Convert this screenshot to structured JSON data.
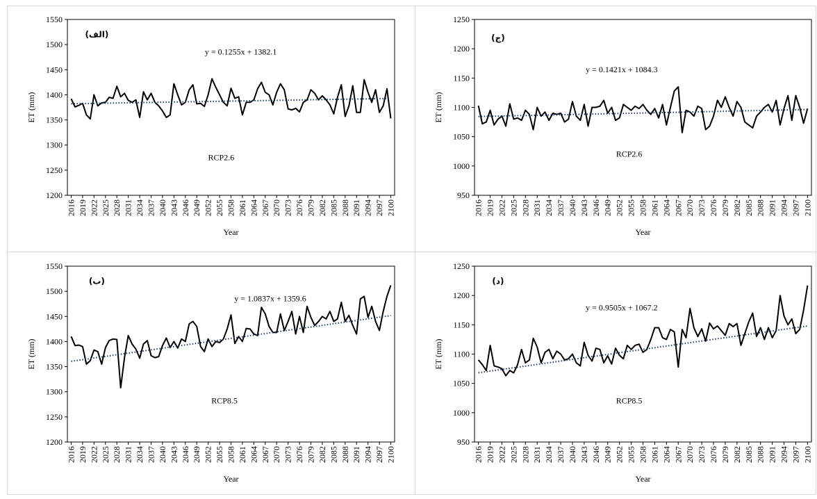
{
  "chart_data": [
    {
      "type": "line",
      "label": "(الف)",
      "annotation": "RCP2.6",
      "ylabel": "ET (mm)",
      "xlabel": "Year",
      "trendline": {
        "label": "y = 0.1255x + 1382.1",
        "slope": 0.1255,
        "intercept": 1382.1
      },
      "xlim": [
        2015,
        2101
      ],
      "ylim": [
        1200,
        1550
      ],
      "yticks": [
        1200,
        1250,
        1300,
        1350,
        1400,
        1450,
        1500,
        1550
      ],
      "xticks": [
        2016,
        2019,
        2022,
        2025,
        2028,
        2031,
        2034,
        2037,
        2040,
        2043,
        2046,
        2049,
        2052,
        2055,
        2058,
        2061,
        2064,
        2067,
        2070,
        2073,
        2076,
        2079,
        2082,
        2085,
        2088,
        2091,
        2094,
        2097,
        2100
      ],
      "x": [
        2016,
        2017,
        2018,
        2019,
        2020,
        2021,
        2022,
        2023,
        2024,
        2025,
        2026,
        2027,
        2028,
        2029,
        2030,
        2031,
        2032,
        2033,
        2034,
        2035,
        2036,
        2037,
        2038,
        2039,
        2040,
        2041,
        2042,
        2043,
        2044,
        2045,
        2046,
        2047,
        2048,
        2049,
        2050,
        2051,
        2052,
        2053,
        2054,
        2055,
        2056,
        2057,
        2058,
        2059,
        2060,
        2061,
        2062,
        2063,
        2064,
        2065,
        2066,
        2067,
        2068,
        2069,
        2070,
        2071,
        2072,
        2073,
        2074,
        2075,
        2076,
        2077,
        2078,
        2079,
        2080,
        2081,
        2082,
        2083,
        2084,
        2085,
        2086,
        2087,
        2088,
        2089,
        2090,
        2091,
        2092,
        2093,
        2094,
        2095,
        2096,
        2097,
        2098,
        2099,
        2100
      ],
      "color": "#000000",
      "values": [
        1392,
        1376,
        1379,
        1383,
        1360,
        1352,
        1400,
        1378,
        1384,
        1385,
        1395,
        1393,
        1417,
        1396,
        1403,
        1389,
        1385,
        1390,
        1355,
        1406,
        1390,
        1403,
        1385,
        1378,
        1368,
        1355,
        1360,
        1422,
        1400,
        1380,
        1385,
        1410,
        1420,
        1382,
        1383,
        1377,
        1400,
        1432,
        1415,
        1400,
        1385,
        1378,
        1413,
        1393,
        1396,
        1360,
        1385,
        1385,
        1390,
        1412,
        1425,
        1405,
        1400,
        1380,
        1405,
        1422,
        1410,
        1372,
        1370,
        1373,
        1366,
        1385,
        1390,
        1410,
        1403,
        1390,
        1398,
        1390,
        1380,
        1362,
        1395,
        1420,
        1357,
        1378,
        1418,
        1365,
        1365,
        1430,
        1405,
        1385,
        1410,
        1365,
        1378,
        1412,
        1353
      ]
    },
    {
      "type": "line",
      "label": "(ج)",
      "annotation": "RCP2.6",
      "ylabel": "ET (mm)",
      "xlabel": "Year",
      "trendline": {
        "label": "y = 0.1421x + 1084.3",
        "slope": 0.1421,
        "intercept": 1084.3
      },
      "xlim": [
        2015,
        2101
      ],
      "ylim": [
        950,
        1250
      ],
      "yticks": [
        950,
        1000,
        1050,
        1100,
        1150,
        1200,
        1250
      ],
      "xticks": [
        2016,
        2019,
        2022,
        2025,
        2028,
        2031,
        2034,
        2037,
        2040,
        2043,
        2046,
        2049,
        2052,
        2055,
        2058,
        2061,
        2064,
        2067,
        2070,
        2073,
        2076,
        2079,
        2082,
        2085,
        2088,
        2091,
        2094,
        2097,
        2100
      ],
      "x": [
        2016,
        2017,
        2018,
        2019,
        2020,
        2021,
        2022,
        2023,
        2024,
        2025,
        2026,
        2027,
        2028,
        2029,
        2030,
        2031,
        2032,
        2033,
        2034,
        2035,
        2036,
        2037,
        2038,
        2039,
        2040,
        2041,
        2042,
        2043,
        2044,
        2045,
        2046,
        2047,
        2048,
        2049,
        2050,
        2051,
        2052,
        2053,
        2054,
        2055,
        2056,
        2057,
        2058,
        2059,
        2060,
        2061,
        2062,
        2063,
        2064,
        2065,
        2066,
        2067,
        2068,
        2069,
        2070,
        2071,
        2072,
        2073,
        2074,
        2075,
        2076,
        2077,
        2078,
        2079,
        2080,
        2081,
        2082,
        2083,
        2084,
        2085,
        2086,
        2087,
        2088,
        2089,
        2090,
        2091,
        2092,
        2093,
        2094,
        2095,
        2096,
        2097,
        2098,
        2099,
        2100
      ],
      "color": "#000000",
      "values": [
        1103,
        1072,
        1075,
        1095,
        1070,
        1080,
        1085,
        1068,
        1106,
        1080,
        1082,
        1078,
        1095,
        1088,
        1062,
        1100,
        1085,
        1092,
        1078,
        1090,
        1088,
        1090,
        1075,
        1080,
        1110,
        1085,
        1078,
        1105,
        1068,
        1100,
        1100,
        1102,
        1112,
        1090,
        1100,
        1078,
        1082,
        1105,
        1100,
        1095,
        1102,
        1098,
        1105,
        1095,
        1088,
        1098,
        1082,
        1105,
        1070,
        1100,
        1128,
        1135,
        1057,
        1095,
        1092,
        1085,
        1102,
        1098,
        1062,
        1068,
        1085,
        1112,
        1100,
        1118,
        1100,
        1085,
        1110,
        1100,
        1075,
        1070,
        1065,
        1085,
        1092,
        1100,
        1105,
        1092,
        1112,
        1070,
        1098,
        1120,
        1078,
        1120,
        1100,
        1073,
        1098
      ]
    },
    {
      "type": "line",
      "label": "(ب)",
      "annotation": "RCP8.5",
      "ylabel": "ET (mm)",
      "xlabel": "Year",
      "trendline": {
        "label": "y = 1.0837x + 1359.6",
        "slope": 1.0837,
        "intercept": 1359.6
      },
      "xlim": [
        2015,
        2101
      ],
      "ylim": [
        1200,
        1550
      ],
      "yticks": [
        1200,
        1250,
        1300,
        1350,
        1400,
        1450,
        1500,
        1550
      ],
      "xticks": [
        2016,
        2019,
        2022,
        2025,
        2028,
        2031,
        2034,
        2037,
        2040,
        2043,
        2046,
        2049,
        2052,
        2055,
        2058,
        2061,
        2064,
        2067,
        2070,
        2073,
        2076,
        2079,
        2082,
        2085,
        2088,
        2091,
        2094,
        2097,
        2100
      ],
      "x": [
        2016,
        2017,
        2018,
        2019,
        2020,
        2021,
        2022,
        2023,
        2024,
        2025,
        2026,
        2027,
        2028,
        2029,
        2030,
        2031,
        2032,
        2033,
        2034,
        2035,
        2036,
        2037,
        2038,
        2039,
        2040,
        2041,
        2042,
        2043,
        2044,
        2045,
        2046,
        2047,
        2048,
        2049,
        2050,
        2051,
        2052,
        2053,
        2054,
        2055,
        2056,
        2057,
        2058,
        2059,
        2060,
        2061,
        2062,
        2063,
        2064,
        2065,
        2066,
        2067,
        2068,
        2069,
        2070,
        2071,
        2072,
        2073,
        2074,
        2075,
        2076,
        2077,
        2078,
        2079,
        2080,
        2081,
        2082,
        2083,
        2084,
        2085,
        2086,
        2087,
        2088,
        2089,
        2090,
        2091,
        2092,
        2093,
        2094,
        2095,
        2096,
        2097,
        2098,
        2099,
        2100
      ],
      "color": "#000000",
      "values": [
        1410,
        1392,
        1393,
        1390,
        1355,
        1362,
        1383,
        1380,
        1355,
        1388,
        1402,
        1405,
        1404,
        1308,
        1368,
        1412,
        1395,
        1385,
        1367,
        1395,
        1402,
        1372,
        1368,
        1370,
        1392,
        1407,
        1388,
        1400,
        1387,
        1405,
        1400,
        1435,
        1440,
        1430,
        1390,
        1380,
        1405,
        1390,
        1400,
        1398,
        1405,
        1425,
        1453,
        1396,
        1410,
        1400,
        1426,
        1425,
        1415,
        1412,
        1468,
        1455,
        1430,
        1418,
        1418,
        1455,
        1422,
        1440,
        1460,
        1415,
        1450,
        1418,
        1470,
        1448,
        1432,
        1440,
        1450,
        1445,
        1460,
        1440,
        1445,
        1478,
        1440,
        1452,
        1432,
        1415,
        1485,
        1490,
        1448,
        1470,
        1440,
        1422,
        1460,
        1490,
        1512
      ]
    },
    {
      "type": "line",
      "label": "(د)",
      "annotation": "RCP8.5",
      "ylabel": "ET (mm)",
      "xlabel": "Year",
      "trendline": {
        "label": "y = 0.9505x + 1067.2",
        "slope": 0.9505,
        "intercept": 1067.2
      },
      "xlim": [
        2015,
        2101
      ],
      "ylim": [
        950,
        1250
      ],
      "yticks": [
        950,
        1000,
        1050,
        1100,
        1150,
        1200,
        1250
      ],
      "xticks": [
        2016,
        2019,
        2022,
        2025,
        2028,
        2031,
        2034,
        2037,
        2040,
        2043,
        2046,
        2049,
        2052,
        2055,
        2058,
        2061,
        2064,
        2067,
        2070,
        2073,
        2076,
        2079,
        2082,
        2085,
        2088,
        2091,
        2094,
        2097,
        2100
      ],
      "x": [
        2016,
        2017,
        2018,
        2019,
        2020,
        2021,
        2022,
        2023,
        2024,
        2025,
        2026,
        2027,
        2028,
        2029,
        2030,
        2031,
        2032,
        2033,
        2034,
        2035,
        2036,
        2037,
        2038,
        2039,
        2040,
        2041,
        2042,
        2043,
        2044,
        2045,
        2046,
        2047,
        2048,
        2049,
        2050,
        2051,
        2052,
        2053,
        2054,
        2055,
        2056,
        2057,
        2058,
        2059,
        2060,
        2061,
        2062,
        2063,
        2064,
        2065,
        2066,
        2067,
        2068,
        2069,
        2070,
        2071,
        2072,
        2073,
        2074,
        2075,
        2076,
        2077,
        2078,
        2079,
        2080,
        2081,
        2082,
        2083,
        2084,
        2085,
        2086,
        2087,
        2088,
        2089,
        2090,
        2091,
        2092,
        2093,
        2094,
        2095,
        2096,
        2097,
        2098,
        2099,
        2100
      ],
      "color": "#000000",
      "values": [
        1090,
        1082,
        1072,
        1115,
        1080,
        1078,
        1075,
        1063,
        1072,
        1068,
        1082,
        1108,
        1085,
        1090,
        1127,
        1112,
        1085,
        1103,
        1108,
        1092,
        1105,
        1100,
        1090,
        1092,
        1100,
        1085,
        1080,
        1120,
        1098,
        1088,
        1110,
        1108,
        1085,
        1097,
        1083,
        1110,
        1098,
        1092,
        1115,
        1108,
        1115,
        1117,
        1103,
        1108,
        1125,
        1145,
        1145,
        1128,
        1125,
        1142,
        1138,
        1078,
        1142,
        1128,
        1178,
        1145,
        1130,
        1143,
        1122,
        1153,
        1143,
        1148,
        1140,
        1132,
        1152,
        1147,
        1152,
        1115,
        1135,
        1155,
        1170,
        1130,
        1145,
        1125,
        1145,
        1128,
        1140,
        1200,
        1165,
        1150,
        1160,
        1135,
        1142,
        1175,
        1217
      ]
    }
  ]
}
